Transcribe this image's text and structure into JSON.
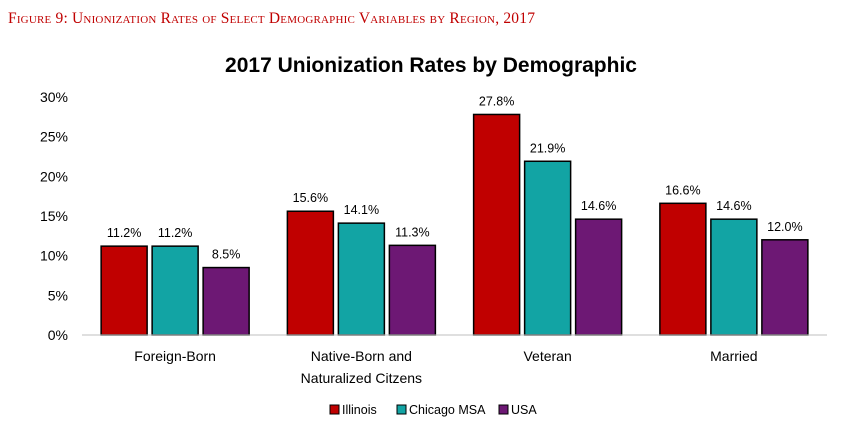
{
  "figure_caption": "Figure 9: Unionization Rates of Select Demographic Variables by Region, 2017",
  "chart_data": {
    "type": "bar",
    "title": "2017 Unionization Rates by Demographic",
    "categories": [
      [
        "Foreign-Born"
      ],
      [
        "Native-Born and",
        "Naturalized Citzens"
      ],
      [
        "Veteran"
      ],
      [
        "Married"
      ]
    ],
    "series": [
      {
        "name": "Illinois",
        "color": "#c00000",
        "values": [
          11.2,
          15.6,
          27.8,
          16.6
        ],
        "labels": [
          "11.2%",
          "15.6%",
          "27.8%",
          "16.6%"
        ]
      },
      {
        "name": "Chicago MSA",
        "color": "#12a4a4",
        "values": [
          11.2,
          14.1,
          21.9,
          14.6
        ],
        "labels": [
          "11.2%",
          "14.1%",
          "21.9%",
          "14.6%"
        ]
      },
      {
        "name": "USA",
        "color": "#6d1874",
        "values": [
          8.5,
          11.3,
          14.6,
          12.0
        ],
        "labels": [
          "8.5%",
          "11.3%",
          "14.6%",
          "12.0%"
        ]
      }
    ],
    "ylim": [
      0,
      30
    ],
    "yticks": [
      0,
      5,
      10,
      15,
      20,
      25,
      30
    ],
    "ytick_labels": [
      "0%",
      "5%",
      "10%",
      "15%",
      "20%",
      "25%",
      "30%"
    ],
    "legend_position": "bottom",
    "grid": false,
    "xlabel": "",
    "ylabel": ""
  }
}
